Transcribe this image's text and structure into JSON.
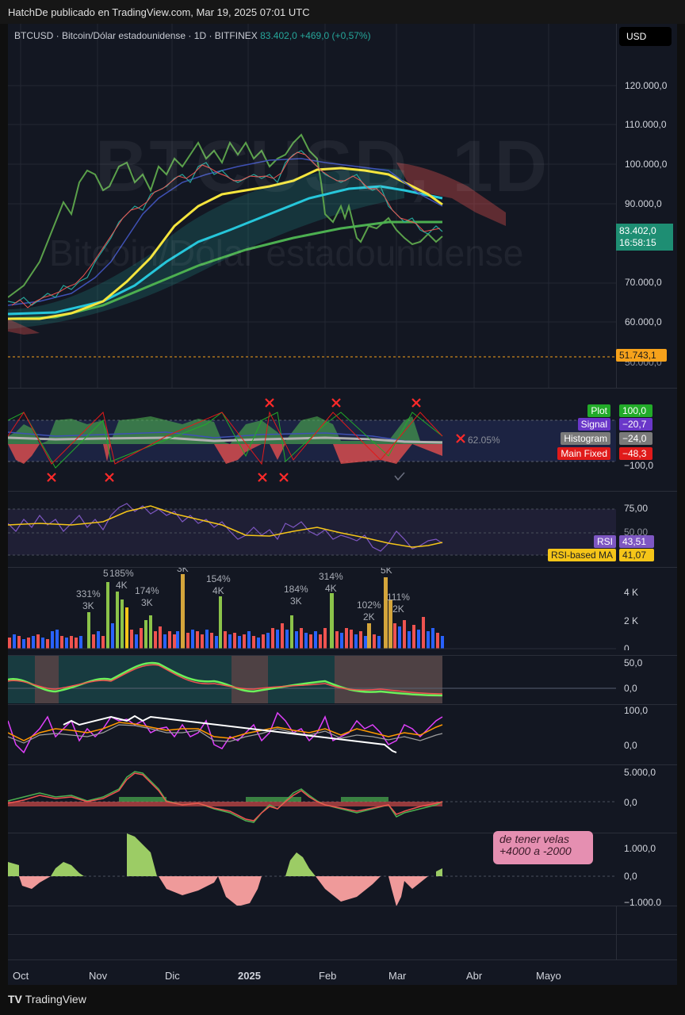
{
  "topbar": {
    "caption": "HatchDe publicado en TradingView.com, Mar 19, 2025 07:01 UTC"
  },
  "main": {
    "symbol": "BTCUSD · Bitcoin/Dólar estadounidense · 1D · BITFINEX",
    "last": "83.402,0",
    "change": "+469,0 (+0,57%)",
    "currency": "USD",
    "watermark_symbol": "BTCUSD, 1D",
    "watermark_name": "Bitcoin/Dólar estadounidense",
    "price_levels": [
      "120.000,0",
      "110.000,0",
      "100.000,0",
      "90.000,0",
      "70.000,0",
      "60.000,0"
    ],
    "current_price": "83.402,0",
    "countdown": "16:58:15",
    "alert_level": "51.743,1",
    "alert_level_partial": "50.000,0"
  },
  "macd_pane": {
    "labels": [
      {
        "name": "Plot",
        "value": "100,0",
        "color": "#22ab29"
      },
      {
        "name": "Signal",
        "value": "−20,7",
        "color": "#6a37c9"
      },
      {
        "name": "Histogram",
        "value": "−24,0",
        "color": "#7a7a7a"
      },
      {
        "name": "Main Fixed",
        "value": "−48,3",
        "color": "#e01a1a"
      }
    ],
    "pct": "62.05%",
    "bottom_level": "−100,0"
  },
  "rsi_pane": {
    "levels": [
      "75,00",
      "50,00"
    ],
    "rsi": {
      "name": "RSI",
      "value": "43,51",
      "color": "#7e57c2"
    },
    "ma": {
      "name": "RSI-based MA",
      "value": "41,07",
      "color": "#f5c518"
    }
  },
  "volume_pane": {
    "levels": [
      "4 K",
      "2 K",
      "0"
    ],
    "annotations": [
      {
        "pct": "331%",
        "val": "3K"
      },
      {
        "pct": "5",
        "val": ""
      },
      {
        "pct": "185%",
        "val": "4K"
      },
      {
        "pct": "174%",
        "val": "3K"
      },
      {
        "pct": "",
        "val": "3K"
      },
      {
        "pct": "154%",
        "val": "4K"
      },
      {
        "pct": "184%",
        "val": "3K"
      },
      {
        "pct": "314%",
        "val": "4K"
      },
      {
        "pct": "102%",
        "val": "2K"
      },
      {
        "pct": "",
        "val": "5K"
      },
      {
        "pct": "111%",
        "val": "2K"
      }
    ]
  },
  "osc1_pane": {
    "levels": [
      "50,0",
      "0,0"
    ]
  },
  "osc2_pane": {
    "levels": [
      "100,0",
      "0,0"
    ]
  },
  "osc3_pane": {
    "levels": [
      "5.000,0",
      "0,0"
    ]
  },
  "osc4_pane": {
    "levels": [
      "1.000,0",
      "0,0",
      "−1.000,0"
    ],
    "note_line1": "de tener velas",
    "note_line2": "+4000 a -2000"
  },
  "time_axis": [
    "Oct",
    "Nov",
    "Dic",
    "2025",
    "Feb",
    "Mar",
    "Abr",
    "Mayo"
  ],
  "footer": {
    "brand": "TradingView"
  },
  "colors": {
    "bull": "#26a69a",
    "bear": "#ef5350",
    "yellow_ma": "#f5e53d",
    "cyan_ma": "#26c6da",
    "green_ma": "#4caf50"
  }
}
